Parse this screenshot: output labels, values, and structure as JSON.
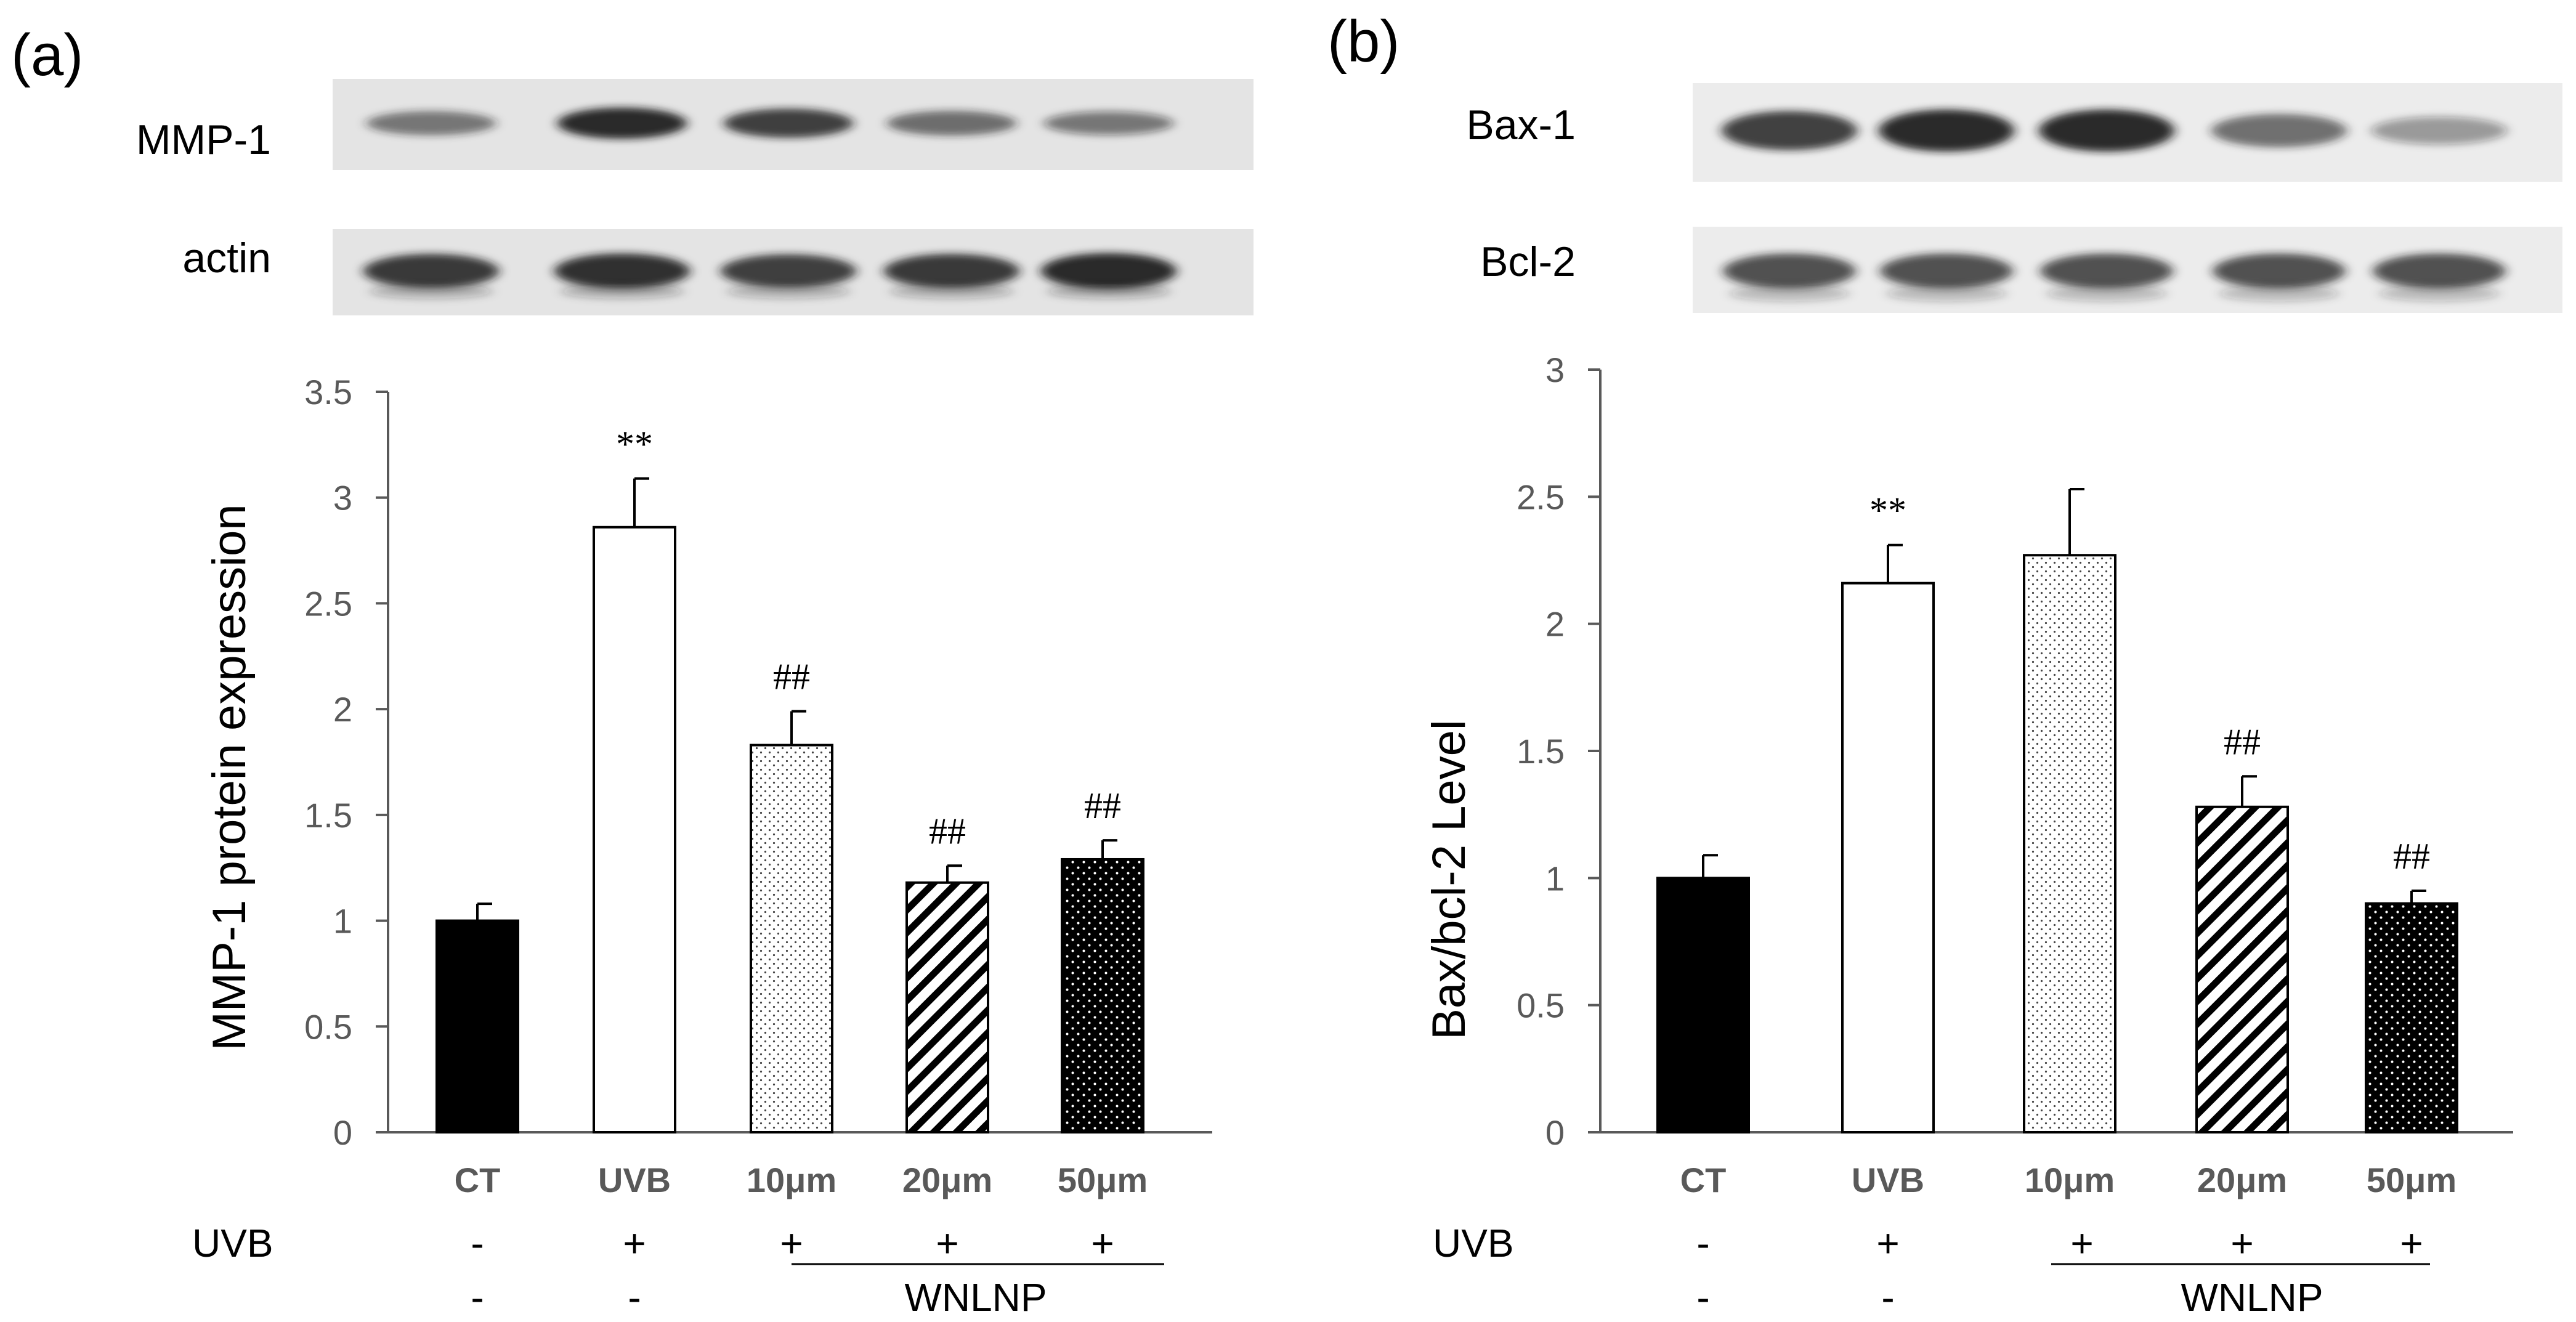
{
  "colors": {
    "ink": "#000000",
    "axis": "#595959",
    "tick_text": "#595959",
    "category_text": "#595959",
    "blot_bg": "#e6e6e6",
    "band": "#1a1a1a"
  },
  "panels": [
    {
      "panel_label": "(a)",
      "blots": [
        {
          "label": "MMP-1",
          "band_intensity": [
            0.45,
            0.95,
            0.8,
            0.5,
            0.4
          ]
        },
        {
          "label": "actin",
          "band_intensity": [
            0.85,
            0.9,
            0.8,
            0.85,
            0.95
          ]
        }
      ],
      "treatment_rows": [
        {
          "label": "UVB",
          "values": [
            "-",
            "+",
            "+",
            "+",
            "+"
          ]
        },
        {
          "label": "",
          "values": [
            "-",
            "-",
            "",
            "",
            ""
          ]
        }
      ],
      "group_label": "WNLNP"
    },
    {
      "panel_label": "(b)",
      "blots": [
        {
          "label": "Bax-1",
          "band_intensity": [
            0.8,
            0.95,
            0.95,
            0.5,
            0.2
          ]
        },
        {
          "label": "Bcl-2",
          "band_intensity": [
            0.7,
            0.7,
            0.7,
            0.7,
            0.7
          ]
        }
      ],
      "treatment_rows": [
        {
          "label": "UVB",
          "values": [
            "-",
            "+",
            "+",
            "+",
            "+"
          ]
        },
        {
          "label": "",
          "values": [
            "-",
            "-",
            "",
            "",
            ""
          ]
        }
      ],
      "group_label": "WNLNP"
    }
  ],
  "chart_data": [
    {
      "type": "bar",
      "title": "",
      "xlabel": "",
      "ylabel": "MMP-1 protein expression",
      "ylim": [
        0,
        3.5
      ],
      "yticks": [
        "0",
        "0.5",
        "1",
        "1.5",
        "2",
        "2.5",
        "3",
        "3.5"
      ],
      "categories": [
        "CT",
        "UVB",
        "10μm",
        "20μm",
        "50μm"
      ],
      "values": [
        1.0,
        2.86,
        1.83,
        1.18,
        1.29
      ],
      "errors": [
        0.08,
        0.23,
        0.16,
        0.08,
        0.09
      ],
      "annotations": [
        "",
        "**",
        "##",
        "##",
        "##"
      ],
      "fills": [
        "solid-black",
        "white",
        "fine-dots",
        "diagonal-hatch",
        "black-dots"
      ],
      "grid": false
    },
    {
      "type": "bar",
      "title": "",
      "xlabel": "",
      "ylabel": "Bax/bcl-2 Level",
      "ylim": [
        0,
        3
      ],
      "yticks": [
        "0",
        "0.5",
        "1",
        "1.5",
        "2",
        "2.5",
        "3"
      ],
      "categories": [
        "CT",
        "UVB",
        "10μm",
        "20μm",
        "50μm"
      ],
      "values": [
        1.0,
        2.16,
        2.27,
        1.28,
        0.9
      ],
      "errors": [
        0.09,
        0.15,
        0.26,
        0.12,
        0.05
      ],
      "annotations": [
        "",
        "**",
        "",
        "##",
        "##"
      ],
      "fills": [
        "solid-black",
        "white",
        "fine-dots",
        "diagonal-hatch",
        "black-dots"
      ],
      "grid": false
    }
  ]
}
